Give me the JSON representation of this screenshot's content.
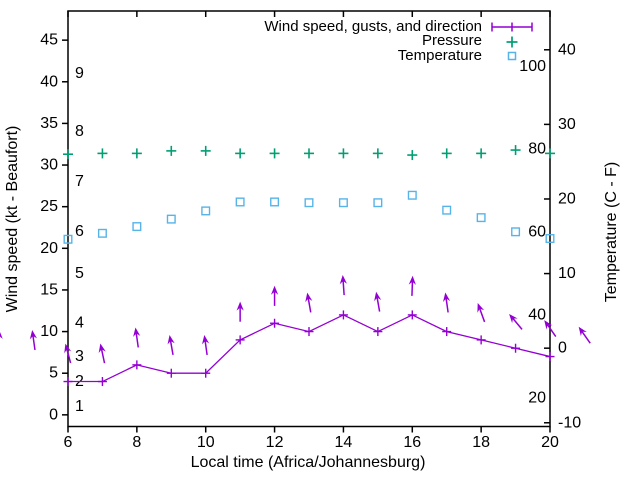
{
  "figure": {
    "xlabel": "Local time (Africa/Johannesburg)",
    "ylabel": "Wind speed (kt - Beaufort)",
    "y2label": "Temperature (C - F)"
  },
  "legend": {
    "position": "top-right",
    "entries": [
      {
        "label": "Wind speed, gusts, and direction",
        "marker": "errorbar",
        "color": "#9400d3"
      },
      {
        "label": "Pressure",
        "marker": "plus",
        "color": "#009e73"
      },
      {
        "label": "Temperature",
        "marker": "square",
        "color": "#56b4e9"
      }
    ]
  },
  "chart_data": {
    "type": "line",
    "title": "",
    "grid": false,
    "legend_position": "top-right",
    "x_axis": {
      "label": "Local time (Africa/Johannesburg)",
      "min": 6,
      "max": 20,
      "ticks": [
        6,
        8,
        10,
        12,
        14,
        16,
        18,
        20
      ]
    },
    "y_axis_left": {
      "label": "Wind speed (kt - Beaufort)",
      "min": -1.4,
      "max": 48.5,
      "ticks": [
        0,
        5,
        10,
        15,
        20,
        25,
        30,
        35,
        40,
        45
      ],
      "beaufort_labels": [
        {
          "beaufort": "1",
          "kt": 1
        },
        {
          "beaufort": "2",
          "kt": 4
        },
        {
          "beaufort": "3",
          "kt": 7
        },
        {
          "beaufort": "4",
          "kt": 11
        },
        {
          "beaufort": "5",
          "kt": 17
        },
        {
          "beaufort": "6",
          "kt": 22
        },
        {
          "beaufort": "7",
          "kt": 28
        },
        {
          "beaufort": "8",
          "kt": 34
        },
        {
          "beaufort": "9",
          "kt": 41
        }
      ]
    },
    "y_axis_right": {
      "label": "Temperature (C - F)",
      "min": -10.5,
      "max": 45.2,
      "ticks": [
        -10,
        0,
        10,
        20,
        30,
        40
      ],
      "fahrenheit_labels": [
        {
          "fahrenheit": "20",
          "celsius": -6.67
        },
        {
          "fahrenheit": "40",
          "celsius": 4.44
        },
        {
          "fahrenheit": "60",
          "celsius": 15.56
        },
        {
          "fahrenheit": "80",
          "celsius": 26.67
        },
        {
          "fahrenheit": "100",
          "celsius": 37.78
        }
      ]
    },
    "x": [
      6,
      7,
      8,
      9,
      10,
      11,
      12,
      13,
      14,
      15,
      16,
      17,
      18,
      19,
      20
    ],
    "series": [
      {
        "name": "Wind speed, gusts, and direction",
        "style": "line+plus-markers",
        "color": "#9400d3",
        "axis": "left",
        "unit": "kt",
        "values": [
          4,
          4,
          6,
          5,
          5,
          9,
          11,
          10,
          12,
          10,
          12,
          10,
          9,
          8,
          7
        ]
      },
      {
        "name": "Pressure",
        "style": "plus-markers",
        "color": "#009e73",
        "axis": "left-unlabeled-scale",
        "unit": "left-axis equivalent (no pressure scale shown)",
        "values": [
          31.3,
          31.4,
          31.4,
          31.7,
          31.7,
          31.4,
          31.4,
          31.4,
          31.4,
          31.4,
          31.2,
          31.4,
          31.4,
          31.8,
          31.4
        ]
      },
      {
        "name": "Temperature",
        "style": "open-square-markers",
        "color": "#56b4e9",
        "axis": "right",
        "unit": "C",
        "values": [
          14.6,
          15.4,
          16.3,
          17.3,
          18.4,
          19.6,
          19.6,
          19.5,
          19.5,
          19.5,
          20.5,
          18.5,
          17.5,
          15.6,
          14.7
        ]
      }
    ],
    "wind_arrows": {
      "color": "#9400d3",
      "length_kt": 2.3,
      "note": "direction arrows drawn above wind-speed line; angle in degrees from vertical, negative = leaning left",
      "points": [
        {
          "t": 4,
          "tip_kt": 10.2,
          "angle_deg": 0
        },
        {
          "t": 5,
          "tip_kt": 10.2,
          "angle_deg": -8
        },
        {
          "t": 6,
          "tip_kt": 8.6,
          "angle_deg": -15
        },
        {
          "t": 7,
          "tip_kt": 8.6,
          "angle_deg": -12
        },
        {
          "t": 8,
          "tip_kt": 10.5,
          "angle_deg": -8
        },
        {
          "t": 9,
          "tip_kt": 9.6,
          "angle_deg": -10
        },
        {
          "t": 10,
          "tip_kt": 9.6,
          "angle_deg": -8
        },
        {
          "t": 11,
          "tip_kt": 13.6,
          "angle_deg": 0
        },
        {
          "t": 12,
          "tip_kt": 15.5,
          "angle_deg": 0
        },
        {
          "t": 13,
          "tip_kt": 14.7,
          "angle_deg": -10
        },
        {
          "t": 14,
          "tip_kt": 16.8,
          "angle_deg": -4
        },
        {
          "t": 15,
          "tip_kt": 14.8,
          "angle_deg": -10
        },
        {
          "t": 16,
          "tip_kt": 16.7,
          "angle_deg": 2
        },
        {
          "t": 17,
          "tip_kt": 14.7,
          "angle_deg": -8
        },
        {
          "t": 18,
          "tip_kt": 13.5,
          "angle_deg": -20
        },
        {
          "t": 19,
          "tip_kt": 12.4,
          "angle_deg": -40
        },
        {
          "t": 20,
          "tip_kt": 11.6,
          "angle_deg": -35
        },
        {
          "t": 21,
          "tip_kt": 10.8,
          "angle_deg": -35
        }
      ]
    },
    "colors": {
      "wind": "#9400d3",
      "pressure": "#009e73",
      "temperature": "#56b4e9",
      "axis": "#000000",
      "background": "#ffffff"
    }
  }
}
